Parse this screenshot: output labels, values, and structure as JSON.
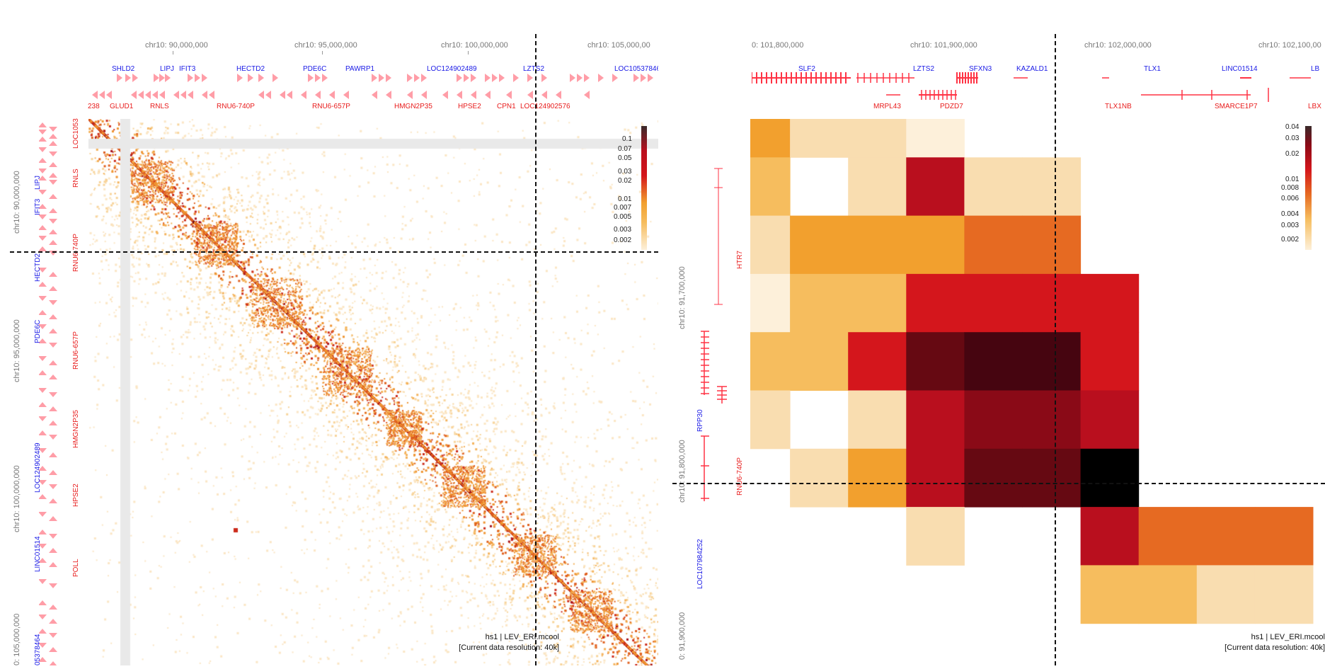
{
  "left_panel": {
    "top_axis": [
      "chr10: 90,000,000",
      "chr10: 95,000,000",
      "chr10: 100,000,000",
      "chr10: 105,000,00"
    ],
    "left_axis": [
      "chr10: 90,000,000",
      "chr10: 95,000,000",
      "chr10: 100,000,000",
      "0: 105,000,000"
    ],
    "top_genes_plus": [
      "SHLD2",
      "LIPJ",
      "IFIT3",
      "HECTD2",
      "PDE6C",
      "PAWRP1",
      "LOC124902489",
      "LZTS2",
      "LOC10537846"
    ],
    "top_genes_minus": [
      "238",
      "GLUD1",
      "RNLS",
      "RNU6-740P",
      "RNU6-657P",
      "HMGN2P35",
      "HPSE2",
      "CPN1",
      "LOC124902576"
    ],
    "left_genes_plus": [
      "LIPJ",
      "IFIT3",
      "HECTD2",
      "PDE6C",
      "LOC124902489",
      "LINC01514",
      "05378464"
    ],
    "left_genes_minus": [
      "LOC1053",
      "RNLS",
      "RNU6-740P",
      "RNU6-657P",
      "HMGN2P35",
      "HPSE2",
      "POLL"
    ],
    "legend_ticks": [
      "0.1",
      "0.07",
      "0.05",
      "0.03",
      "0.02",
      "0.01",
      "0.007",
      "0.005",
      "0.003",
      "0.002"
    ],
    "info_line1": "hs1 | LEV_ERI.mcool",
    "info_line2": "[Current data resolution: 40k]"
  },
  "right_panel": {
    "top_axis": [
      "0: 101,800,000",
      "chr10: 101,900,000",
      "chr10: 102,000,000",
      "chr10: 102,100,00"
    ],
    "left_axis": [
      "chr10: 91,700,000",
      "chr10: 91,800,000",
      "0: 91,900,000"
    ],
    "top_genes_plus": [
      "SLF2",
      "LZTS2",
      "SFXN3",
      "KAZALD1",
      "TLX1",
      "LINC01514",
      "LB"
    ],
    "top_genes_minus": [
      "MRPL43",
      "PDZD7",
      "TLX1NB",
      "SMARCE1P7",
      "LBX"
    ],
    "left_genes_red": [
      "HTR7",
      "RNU6-740P"
    ],
    "left_genes_blue": [
      "RPP30",
      "LOC107984252"
    ],
    "legend_ticks": [
      "0.04",
      "0.03",
      "0.02",
      "0.01",
      "0.008",
      "0.006",
      "0.004",
      "0.003",
      "0.002"
    ],
    "info_line1": "hs1 | LEV_ERI.mcool",
    "info_line2": "[Current data resolution: 40k]",
    "heatmap_levels": [
      [
        3,
        1,
        1,
        0,
        null,
        null,
        null,
        null,
        null,
        null
      ],
      [
        2,
        null,
        1,
        6,
        1,
        1,
        null,
        null,
        null,
        null
      ],
      [
        1,
        3,
        3,
        3,
        4,
        4,
        null,
        null,
        null,
        null
      ],
      [
        0,
        2,
        2,
        5,
        5,
        5,
        5,
        null,
        null,
        null
      ],
      [
        2,
        2,
        5,
        8,
        9,
        9,
        5,
        null,
        null,
        null
      ],
      [
        1,
        null,
        1,
        6,
        7,
        7,
        6,
        null,
        null,
        null
      ],
      [
        null,
        1,
        3,
        6,
        8,
        8,
        10,
        null,
        null,
        null
      ],
      [
        null,
        null,
        null,
        1,
        null,
        null,
        6,
        4,
        4,
        4
      ],
      [
        null,
        null,
        null,
        null,
        null,
        null,
        2,
        2,
        1,
        1
      ]
    ]
  },
  "colors": {
    "scale": [
      "#fdf0da",
      "#f9ddb0",
      "#f6bd5e",
      "#f2a02e",
      "#e66a22",
      "#d4161c",
      "#b90f1e",
      "#8a0a17",
      "#660912",
      "#460510",
      "#000000"
    ]
  }
}
